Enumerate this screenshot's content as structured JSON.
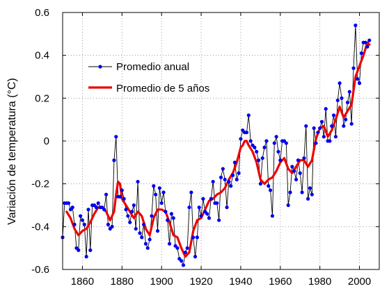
{
  "chart_data": {
    "type": "line",
    "title": "",
    "xlabel": "",
    "ylabel": "Variación de temperatura  (°C)",
    "xlim": [
      1850,
      2010
    ],
    "ylim": [
      -0.6,
      0.6
    ],
    "x_ticks": [
      1860,
      1880,
      1900,
      1920,
      1940,
      1960,
      1980,
      2000
    ],
    "y_ticks": [
      -0.6,
      -0.4,
      -0.2,
      0,
      0.2,
      0.4,
      0.6
    ],
    "x_tick_labels": [
      "1860",
      "1880",
      "1900",
      "1920",
      "1940",
      "1960",
      "1980",
      "2000"
    ],
    "y_tick_labels": [
      "-0.6",
      "-0.4",
      "-0.2",
      "0",
      "0.2",
      "0.4",
      "0.6"
    ],
    "grid": true,
    "legend_position": "top-left",
    "series": [
      {
        "name": "Promedio anual",
        "style": "line-markers",
        "color": "#0000ee",
        "line_color": "#000000",
        "x": [
          1850,
          1851,
          1852,
          1853,
          1854,
          1855,
          1856,
          1857,
          1858,
          1859,
          1860,
          1861,
          1862,
          1863,
          1864,
          1865,
          1866,
          1867,
          1868,
          1869,
          1870,
          1871,
          1872,
          1873,
          1874,
          1875,
          1876,
          1877,
          1878,
          1879,
          1880,
          1881,
          1882,
          1883,
          1884,
          1885,
          1886,
          1887,
          1888,
          1889,
          1890,
          1891,
          1892,
          1893,
          1894,
          1895,
          1896,
          1897,
          1898,
          1899,
          1900,
          1901,
          1902,
          1903,
          1904,
          1905,
          1906,
          1907,
          1908,
          1909,
          1910,
          1911,
          1912,
          1913,
          1914,
          1915,
          1916,
          1917,
          1918,
          1919,
          1920,
          1921,
          1922,
          1923,
          1924,
          1925,
          1926,
          1927,
          1928,
          1929,
          1930,
          1931,
          1932,
          1933,
          1934,
          1935,
          1936,
          1937,
          1938,
          1939,
          1940,
          1941,
          1942,
          1943,
          1944,
          1945,
          1946,
          1947,
          1948,
          1949,
          1950,
          1951,
          1952,
          1953,
          1954,
          1955,
          1956,
          1957,
          1958,
          1959,
          1960,
          1961,
          1962,
          1963,
          1964,
          1965,
          1966,
          1967,
          1968,
          1969,
          1970,
          1971,
          1972,
          1973,
          1974,
          1975,
          1976,
          1977,
          1978,
          1979,
          1980,
          1981,
          1982,
          1983,
          1984,
          1985,
          1986,
          1987,
          1988,
          1989,
          1990,
          1991,
          1992,
          1993,
          1994,
          1995,
          1996,
          1997,
          1998,
          1999,
          2000,
          2001,
          2002,
          2003,
          2004,
          2005
        ],
        "values": [
          -0.45,
          -0.29,
          -0.29,
          -0.29,
          -0.32,
          -0.31,
          -0.39,
          -0.5,
          -0.51,
          -0.35,
          -0.37,
          -0.39,
          -0.54,
          -0.32,
          -0.51,
          -0.3,
          -0.3,
          -0.31,
          -0.29,
          -0.31,
          -0.31,
          -0.32,
          -0.25,
          -0.39,
          -0.41,
          -0.4,
          -0.09,
          0.02,
          -0.26,
          -0.26,
          -0.23,
          -0.27,
          -0.32,
          -0.35,
          -0.38,
          -0.33,
          -0.3,
          -0.41,
          -0.19,
          -0.43,
          -0.45,
          -0.39,
          -0.48,
          -0.5,
          -0.46,
          -0.35,
          -0.21,
          -0.25,
          -0.42,
          -0.22,
          -0.29,
          -0.24,
          -0.33,
          -0.37,
          -0.48,
          -0.34,
          -0.36,
          -0.49,
          -0.5,
          -0.55,
          -0.56,
          -0.58,
          -0.52,
          -0.5,
          -0.31,
          -0.24,
          -0.45,
          -0.54,
          -0.45,
          -0.31,
          -0.35,
          -0.27,
          -0.33,
          -0.34,
          -0.36,
          -0.27,
          -0.19,
          -0.29,
          -0.29,
          -0.37,
          -0.17,
          -0.13,
          -0.18,
          -0.31,
          -0.19,
          -0.21,
          -0.16,
          -0.1,
          -0.18,
          -0.15,
          0.01,
          0.05,
          0.04,
          0.04,
          0.12,
          0.0,
          -0.02,
          -0.03,
          -0.05,
          -0.09,
          -0.2,
          -0.08,
          -0.03,
          0.0,
          -0.21,
          -0.23,
          -0.35,
          -0.01,
          0.02,
          -0.05,
          -0.09,
          0.0,
          0.0,
          -0.01,
          -0.3,
          -0.24,
          -0.12,
          -0.14,
          -0.18,
          -0.09,
          -0.15,
          -0.24,
          -0.08,
          0.07,
          -0.27,
          -0.22,
          -0.25,
          0.06,
          -0.01,
          0.04,
          0.06,
          0.09,
          0.02,
          0.15,
          0.0,
          0.0,
          0.07,
          0.12,
          0.02,
          0.19,
          0.27,
          0.2,
          0.07,
          0.1,
          0.18,
          0.23,
          0.08,
          0.34,
          0.54,
          0.29,
          0.27,
          0.41,
          0.46,
          0.46,
          0.44,
          0.47
        ]
      },
      {
        "name": "Promedio de 5 años",
        "style": "line",
        "color": "#ee0000",
        "x": [
          1852,
          1854,
          1856,
          1858,
          1860,
          1862,
          1864,
          1866,
          1868,
          1870,
          1872,
          1874,
          1876,
          1877,
          1878,
          1879,
          1880,
          1882,
          1884,
          1886,
          1888,
          1890,
          1892,
          1894,
          1896,
          1898,
          1900,
          1902,
          1904,
          1906,
          1908,
          1910,
          1912,
          1914,
          1916,
          1918,
          1920,
          1922,
          1924,
          1926,
          1928,
          1930,
          1932,
          1934,
          1936,
          1938,
          1940,
          1941,
          1942,
          1943,
          1944,
          1946,
          1948,
          1950,
          1952,
          1954,
          1956,
          1958,
          1960,
          1962,
          1964,
          1966,
          1968,
          1970,
          1972,
          1974,
          1976,
          1978,
          1980,
          1982,
          1984,
          1986,
          1988,
          1990,
          1992,
          1994,
          1996,
          1998,
          2000,
          2002,
          2004,
          2005
        ],
        "values": [
          -0.33,
          -0.36,
          -0.41,
          -0.44,
          -0.42,
          -0.41,
          -0.38,
          -0.34,
          -0.31,
          -0.31,
          -0.33,
          -0.37,
          -0.33,
          -0.25,
          -0.19,
          -0.2,
          -0.27,
          -0.3,
          -0.33,
          -0.36,
          -0.33,
          -0.35,
          -0.41,
          -0.44,
          -0.36,
          -0.32,
          -0.32,
          -0.33,
          -0.38,
          -0.44,
          -0.45,
          -0.5,
          -0.54,
          -0.52,
          -0.42,
          -0.37,
          -0.36,
          -0.32,
          -0.28,
          -0.27,
          -0.25,
          -0.24,
          -0.22,
          -0.18,
          -0.15,
          -0.1,
          -0.03,
          -0.02,
          0.0,
          0.0,
          -0.02,
          -0.05,
          -0.1,
          -0.18,
          -0.2,
          -0.18,
          -0.17,
          -0.14,
          -0.1,
          -0.08,
          -0.13,
          -0.15,
          -0.12,
          -0.09,
          -0.09,
          -0.12,
          -0.09,
          0.01,
          0.06,
          0.07,
          0.02,
          0.05,
          0.1,
          0.16,
          0.11,
          0.14,
          0.17,
          0.3,
          0.35,
          0.4,
          0.46,
          0.45
        ]
      }
    ]
  }
}
